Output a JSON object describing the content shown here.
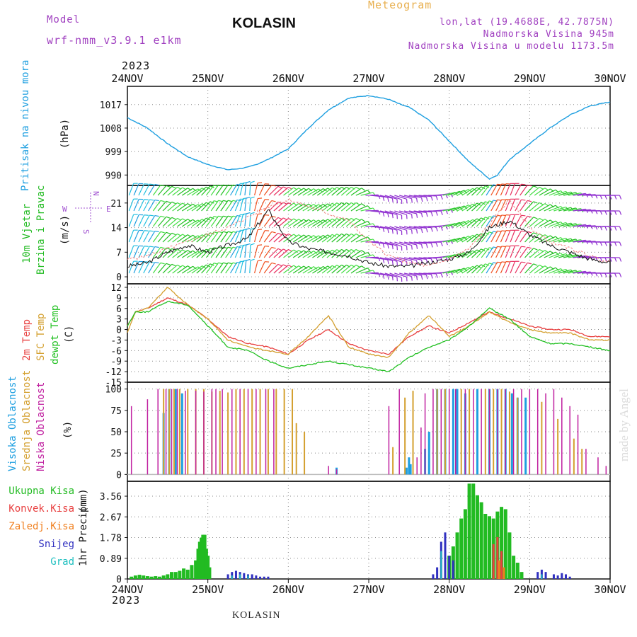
{
  "header": {
    "model_label": "Model",
    "model_name": "wrf-nmm_v3.9.1 e1km",
    "station": "KOLASIN",
    "title": "Meteogram",
    "coords": "lon,lat (19.4688E, 42.7875N)",
    "altitude": "Nadmorska Visina 945m",
    "model_altitude": "Nadmorska Visina u modelu 1173.5m"
  },
  "footer": {
    "station": "KOLASIN"
  },
  "watermark": "made by Angel",
  "colors": {
    "pressure": "#1e9fe0",
    "wind_label_green": "#22bb22",
    "temp_2m": "#e84040",
    "temp_sfc": "#d4a030",
    "dewpoint": "#22c022",
    "cloud_high": "#1e9fe0",
    "cloud_mid": "#d4a030",
    "cloud_low": "#c020a0",
    "precip_total": "#22bb22",
    "precip_conv": "#e84040",
    "precip_frz": "#f08020",
    "precip_snow": "#3030c0",
    "precip_hail": "#20c0c0",
    "compass": "#a050d0",
    "header_purple": "#a040c0",
    "header_orange": "#e8b050"
  },
  "chart_data": [
    {
      "type": "line",
      "panel": "pressure",
      "ylabel": "Pritisak na nivou mora",
      "unit": "(hPa)",
      "x_start_year": "2023",
      "x_ticks": [
        "24NOV",
        "25NOV",
        "26NOV",
        "27NOV",
        "28NOV",
        "29NOV",
        "30NOV"
      ],
      "x_days": [
        0,
        0.25,
        0.5,
        0.75,
        1,
        1.25,
        1.4,
        1.5,
        1.6,
        1.75,
        2,
        2.25,
        2.5,
        2.75,
        3,
        3.25,
        3.4,
        3.5,
        3.75,
        4,
        4.25,
        4.5,
        4.6,
        4.75,
        5,
        5.25,
        5.5,
        5.75,
        6
      ],
      "values": [
        1012,
        1008,
        1002,
        997,
        994,
        992,
        992.5,
        993,
        994,
        996,
        1000,
        1008,
        1015,
        1019.5,
        1020.5,
        1019,
        1017,
        1016,
        1011,
        1003,
        995,
        988.5,
        990,
        996,
        1002,
        1008,
        1013,
        1016.5,
        1018
      ],
      "yticks": [
        990,
        999,
        1008,
        1017
      ],
      "ylim": [
        986,
        1024
      ]
    },
    {
      "type": "line",
      "panel": "wind",
      "ylabel_1": "10m Vjetar",
      "ylabel_2": "Brzina i Pravac",
      "unit": "(m/s)",
      "compass": {
        "n": "N",
        "s": "S",
        "e": "E",
        "w": "W"
      },
      "x_days": [
        0,
        0.25,
        0.5,
        0.75,
        1,
        1.25,
        1.5,
        1.75,
        2,
        2.25,
        2.5,
        2.75,
        3,
        3.25,
        3.5,
        3.75,
        4,
        4.25,
        4.5,
        4.75,
        5,
        5.25,
        5.5,
        5.75,
        6
      ],
      "speed": [
        3,
        4,
        7,
        9,
        7,
        9,
        11,
        19,
        10,
        8,
        7,
        6,
        4,
        3,
        3,
        4,
        5,
        7,
        14,
        16,
        12,
        9,
        7,
        5,
        4
      ],
      "gust": [
        5,
        6,
        8,
        10,
        12,
        14,
        17,
        20,
        22,
        20,
        18,
        16,
        10,
        6,
        4,
        3,
        5,
        8,
        15,
        22,
        14,
        10,
        8,
        6,
        4
      ],
      "direction_deg": [
        200,
        210,
        230,
        240,
        215,
        215,
        180,
        225,
        235,
        240,
        230,
        230,
        275,
        290,
        280,
        270,
        250,
        230,
        210,
        200,
        230,
        250,
        260,
        270,
        270
      ],
      "yticks": [
        0,
        7,
        14,
        21
      ],
      "ylim": [
        -2,
        26
      ]
    },
    {
      "type": "line",
      "panel": "temperature",
      "ylabel_1": "2m Temp",
      "ylabel_2": "SFC Temp",
      "ylabel_3": "dewpt Temp",
      "unit": "(C)",
      "x_days": [
        0,
        0.1,
        0.25,
        0.5,
        0.75,
        1,
        1.25,
        1.5,
        1.75,
        2,
        2.25,
        2.5,
        2.75,
        3,
        3.25,
        3.5,
        3.75,
        4,
        4.25,
        4.5,
        4.75,
        5,
        5.25,
        5.5,
        5.75,
        6
      ],
      "series": [
        {
          "name": "2m Temp",
          "values": [
            1,
            5,
            6,
            9,
            7,
            3,
            -2,
            -4,
            -5,
            -7,
            -3,
            0,
            -4,
            -6,
            -7,
            -2,
            1,
            -1,
            2,
            5,
            3,
            1,
            0,
            0,
            -2,
            -2
          ]
        },
        {
          "name": "SFC Temp",
          "values": [
            -1,
            5,
            6,
            12,
            7,
            3,
            -3,
            -5,
            -6,
            -7,
            -2,
            4,
            -5,
            -7,
            -8,
            -1,
            4,
            -2,
            1,
            5,
            2,
            0,
            -1,
            -1,
            -3,
            -3
          ]
        },
        {
          "name": "dewpt Temp",
          "values": [
            1,
            5,
            5,
            8,
            7,
            1,
            -5,
            -6,
            -9,
            -11,
            -10,
            -9,
            -10,
            -11,
            -12,
            -8,
            -5,
            -3,
            1,
            6,
            3,
            -2,
            -4,
            -4,
            -5,
            -6
          ]
        }
      ],
      "yticks": [
        -15,
        -12,
        -9,
        -6,
        -3,
        0,
        3,
        6,
        9,
        12
      ],
      "ylim": [
        -15,
        13
      ]
    },
    {
      "type": "bar",
      "panel": "clouds",
      "ylabel_1": "Visoka Oblacnost",
      "ylabel_2": "Srednja Oblacnost",
      "ylabel_3": "Niska Oblacnost",
      "unit": "(%)",
      "series": [
        {
          "name": "Visoka Oblacnost",
          "points": [
            [
              0.45,
              72
            ],
            [
              0.52,
              100
            ],
            [
              0.6,
              100
            ],
            [
              0.68,
              95
            ],
            [
              2.6,
              8
            ],
            [
              3.5,
              20
            ],
            [
              3.7,
              30
            ],
            [
              3.75,
              50
            ],
            [
              3.85,
              100
            ],
            [
              3.95,
              100
            ],
            [
              4.05,
              100
            ],
            [
              4.1,
              100
            ],
            [
              4.2,
              95
            ],
            [
              4.35,
              100
            ],
            [
              4.5,
              100
            ],
            [
              4.6,
              100
            ],
            [
              4.7,
              100
            ],
            [
              4.78,
              95
            ],
            [
              4.85,
              90
            ],
            [
              4.95,
              90
            ],
            [
              3.47,
              8
            ],
            [
              3.52,
              12
            ]
          ]
        },
        {
          "name": "Srednja Oblacnost",
          "points": [
            [
              0.45,
              100
            ],
            [
              0.52,
              100
            ],
            [
              0.58,
              100
            ],
            [
              0.65,
              100
            ],
            [
              0.75,
              100
            ],
            [
              0.85,
              100
            ],
            [
              0.95,
              100
            ],
            [
              1.05,
              97
            ],
            [
              1.15,
              98
            ],
            [
              1.25,
              96
            ],
            [
              1.35,
              100
            ],
            [
              1.45,
              100
            ],
            [
              1.55,
              100
            ],
            [
              1.65,
              100
            ],
            [
              1.75,
              100
            ],
            [
              1.85,
              100
            ],
            [
              1.95,
              100
            ],
            [
              2.05,
              100
            ],
            [
              2.1,
              60
            ],
            [
              2.2,
              50
            ],
            [
              3.3,
              32
            ],
            [
              3.45,
              90
            ],
            [
              3.55,
              98
            ],
            [
              3.85,
              100
            ],
            [
              3.95,
              100
            ],
            [
              4.15,
              100
            ],
            [
              4.25,
              100
            ],
            [
              4.45,
              100
            ],
            [
              4.55,
              100
            ],
            [
              4.65,
              100
            ],
            [
              4.75,
              97
            ],
            [
              4.85,
              90
            ],
            [
              5.15,
              85
            ],
            [
              5.35,
              65
            ],
            [
              5.55,
              42
            ],
            [
              5.65,
              30
            ]
          ]
        },
        {
          "name": "Niska Oblacnost",
          "points": [
            [
              0.05,
              80
            ],
            [
              0.25,
              88
            ],
            [
              0.38,
              100
            ],
            [
              0.48,
              100
            ],
            [
              0.55,
              100
            ],
            [
              0.62,
              100
            ],
            [
              0.72,
              98
            ],
            [
              0.85,
              98
            ],
            [
              0.95,
              97
            ],
            [
              1.05,
              100
            ],
            [
              1.1,
              100
            ],
            [
              1.18,
              100
            ],
            [
              1.3,
              100
            ],
            [
              1.4,
              100
            ],
            [
              1.5,
              100
            ],
            [
              1.6,
              100
            ],
            [
              1.72,
              100
            ],
            [
              1.82,
              100
            ],
            [
              2.5,
              10
            ],
            [
              2.6,
              6
            ],
            [
              3.25,
              80
            ],
            [
              3.38,
              100
            ],
            [
              3.6,
              20
            ],
            [
              3.65,
              55
            ],
            [
              3.7,
              95
            ],
            [
              3.8,
              100
            ],
            [
              3.9,
              100
            ],
            [
              4.0,
              100
            ],
            [
              4.08,
              100
            ],
            [
              4.2,
              100
            ],
            [
              4.3,
              100
            ],
            [
              4.4,
              100
            ],
            [
              4.5,
              100
            ],
            [
              4.6,
              100
            ],
            [
              4.7,
              100
            ],
            [
              4.8,
              100
            ],
            [
              4.9,
              100
            ],
            [
              5.0,
              100
            ],
            [
              5.1,
              100
            ],
            [
              5.2,
              95
            ],
            [
              5.3,
              100
            ],
            [
              5.4,
              90
            ],
            [
              5.5,
              80
            ],
            [
              5.6,
              70
            ],
            [
              5.7,
              30
            ],
            [
              5.85,
              20
            ],
            [
              5.95,
              10
            ]
          ]
        }
      ],
      "yticks": [
        0,
        25,
        50,
        75,
        100
      ],
      "ylim": [
        -8,
        108
      ]
    },
    {
      "type": "bar",
      "panel": "precip",
      "ylabel": "1hr Precip",
      "unit": "(mm)",
      "legend": [
        "Ukupna Kisa",
        "Konvek.Kisa",
        "Zaledj.Kisa",
        "Snijeg",
        "Grad"
      ],
      "x_end_year": "2023",
      "series": [
        {
          "name": "Ukupna Kisa",
          "points": [
            [
              0.05,
              0.1
            ],
            [
              0.1,
              0.15
            ],
            [
              0.15,
              0.18
            ],
            [
              0.2,
              0.15
            ],
            [
              0.25,
              0.12
            ],
            [
              0.3,
              0.1
            ],
            [
              0.35,
              0.12
            ],
            [
              0.4,
              0.1
            ],
            [
              0.45,
              0.15
            ],
            [
              0.5,
              0.2
            ],
            [
              0.55,
              0.3
            ],
            [
              0.6,
              0.3
            ],
            [
              0.65,
              0.35
            ],
            [
              0.7,
              0.45
            ],
            [
              0.75,
              0.4
            ],
            [
              0.8,
              0.6
            ],
            [
              0.85,
              0.8
            ],
            [
              0.88,
              1.3
            ],
            [
              0.9,
              1.6
            ],
            [
              0.92,
              1.78
            ],
            [
              0.94,
              1.9
            ],
            [
              0.96,
              1.9
            ],
            [
              0.98,
              1.3
            ],
            [
              1.0,
              1.0
            ],
            [
              1.02,
              0.5
            ],
            [
              4.0,
              1.0
            ],
            [
              4.05,
              1.4
            ],
            [
              4.1,
              2.0
            ],
            [
              4.15,
              2.6
            ],
            [
              4.2,
              3.0
            ],
            [
              4.25,
              4.1
            ],
            [
              4.3,
              4.1
            ],
            [
              4.35,
              3.6
            ],
            [
              4.4,
              3.3
            ],
            [
              4.45,
              2.8
            ],
            [
              4.5,
              2.7
            ],
            [
              4.55,
              2.6
            ],
            [
              4.6,
              2.9
            ],
            [
              4.65,
              3.1
            ],
            [
              4.7,
              3.0
            ],
            [
              4.75,
              2.0
            ],
            [
              4.8,
              1.0
            ],
            [
              4.85,
              0.7
            ],
            [
              4.9,
              0.3
            ]
          ]
        },
        {
          "name": "Konvek.Kisa",
          "points": [
            [
              4.55,
              1.5
            ],
            [
              4.6,
              1.8
            ],
            [
              4.65,
              1.2
            ]
          ]
        },
        {
          "name": "Zaledj.Kisa",
          "points": [
            [
              4.62,
              0.8
            ],
            [
              4.68,
              0.5
            ]
          ]
        },
        {
          "name": "Snijeg",
          "points": [
            [
              1.25,
              0.2
            ],
            [
              1.3,
              0.3
            ],
            [
              1.35,
              0.35
            ],
            [
              1.4,
              0.3
            ],
            [
              1.45,
              0.25
            ],
            [
              1.5,
              0.2
            ],
            [
              1.55,
              0.2
            ],
            [
              1.6,
              0.15
            ],
            [
              1.65,
              0.1
            ],
            [
              1.7,
              0.1
            ],
            [
              1.75,
              0.1
            ],
            [
              3.8,
              0.2
            ],
            [
              3.85,
              0.5
            ],
            [
              3.9,
              1.6
            ],
            [
              3.95,
              2.0
            ],
            [
              4.0,
              1.0
            ],
            [
              4.05,
              0.8
            ],
            [
              5.1,
              0.3
            ],
            [
              5.15,
              0.4
            ],
            [
              5.2,
              0.3
            ],
            [
              5.3,
              0.2
            ],
            [
              5.35,
              0.15
            ],
            [
              5.4,
              0.25
            ],
            [
              5.45,
              0.2
            ],
            [
              5.5,
              0.1
            ]
          ]
        },
        {
          "name": "Grad",
          "points": [
            [
              1.3,
              0.15
            ],
            [
              1.4,
              0.2
            ],
            [
              1.5,
              0.15
            ],
            [
              3.9,
              1.2
            ],
            [
              5.15,
              0.2
            ]
          ]
        }
      ],
      "yticks": [
        0,
        0.89,
        1.78,
        2.67,
        3.56
      ],
      "ylim": [
        0,
        4.2
      ]
    }
  ]
}
